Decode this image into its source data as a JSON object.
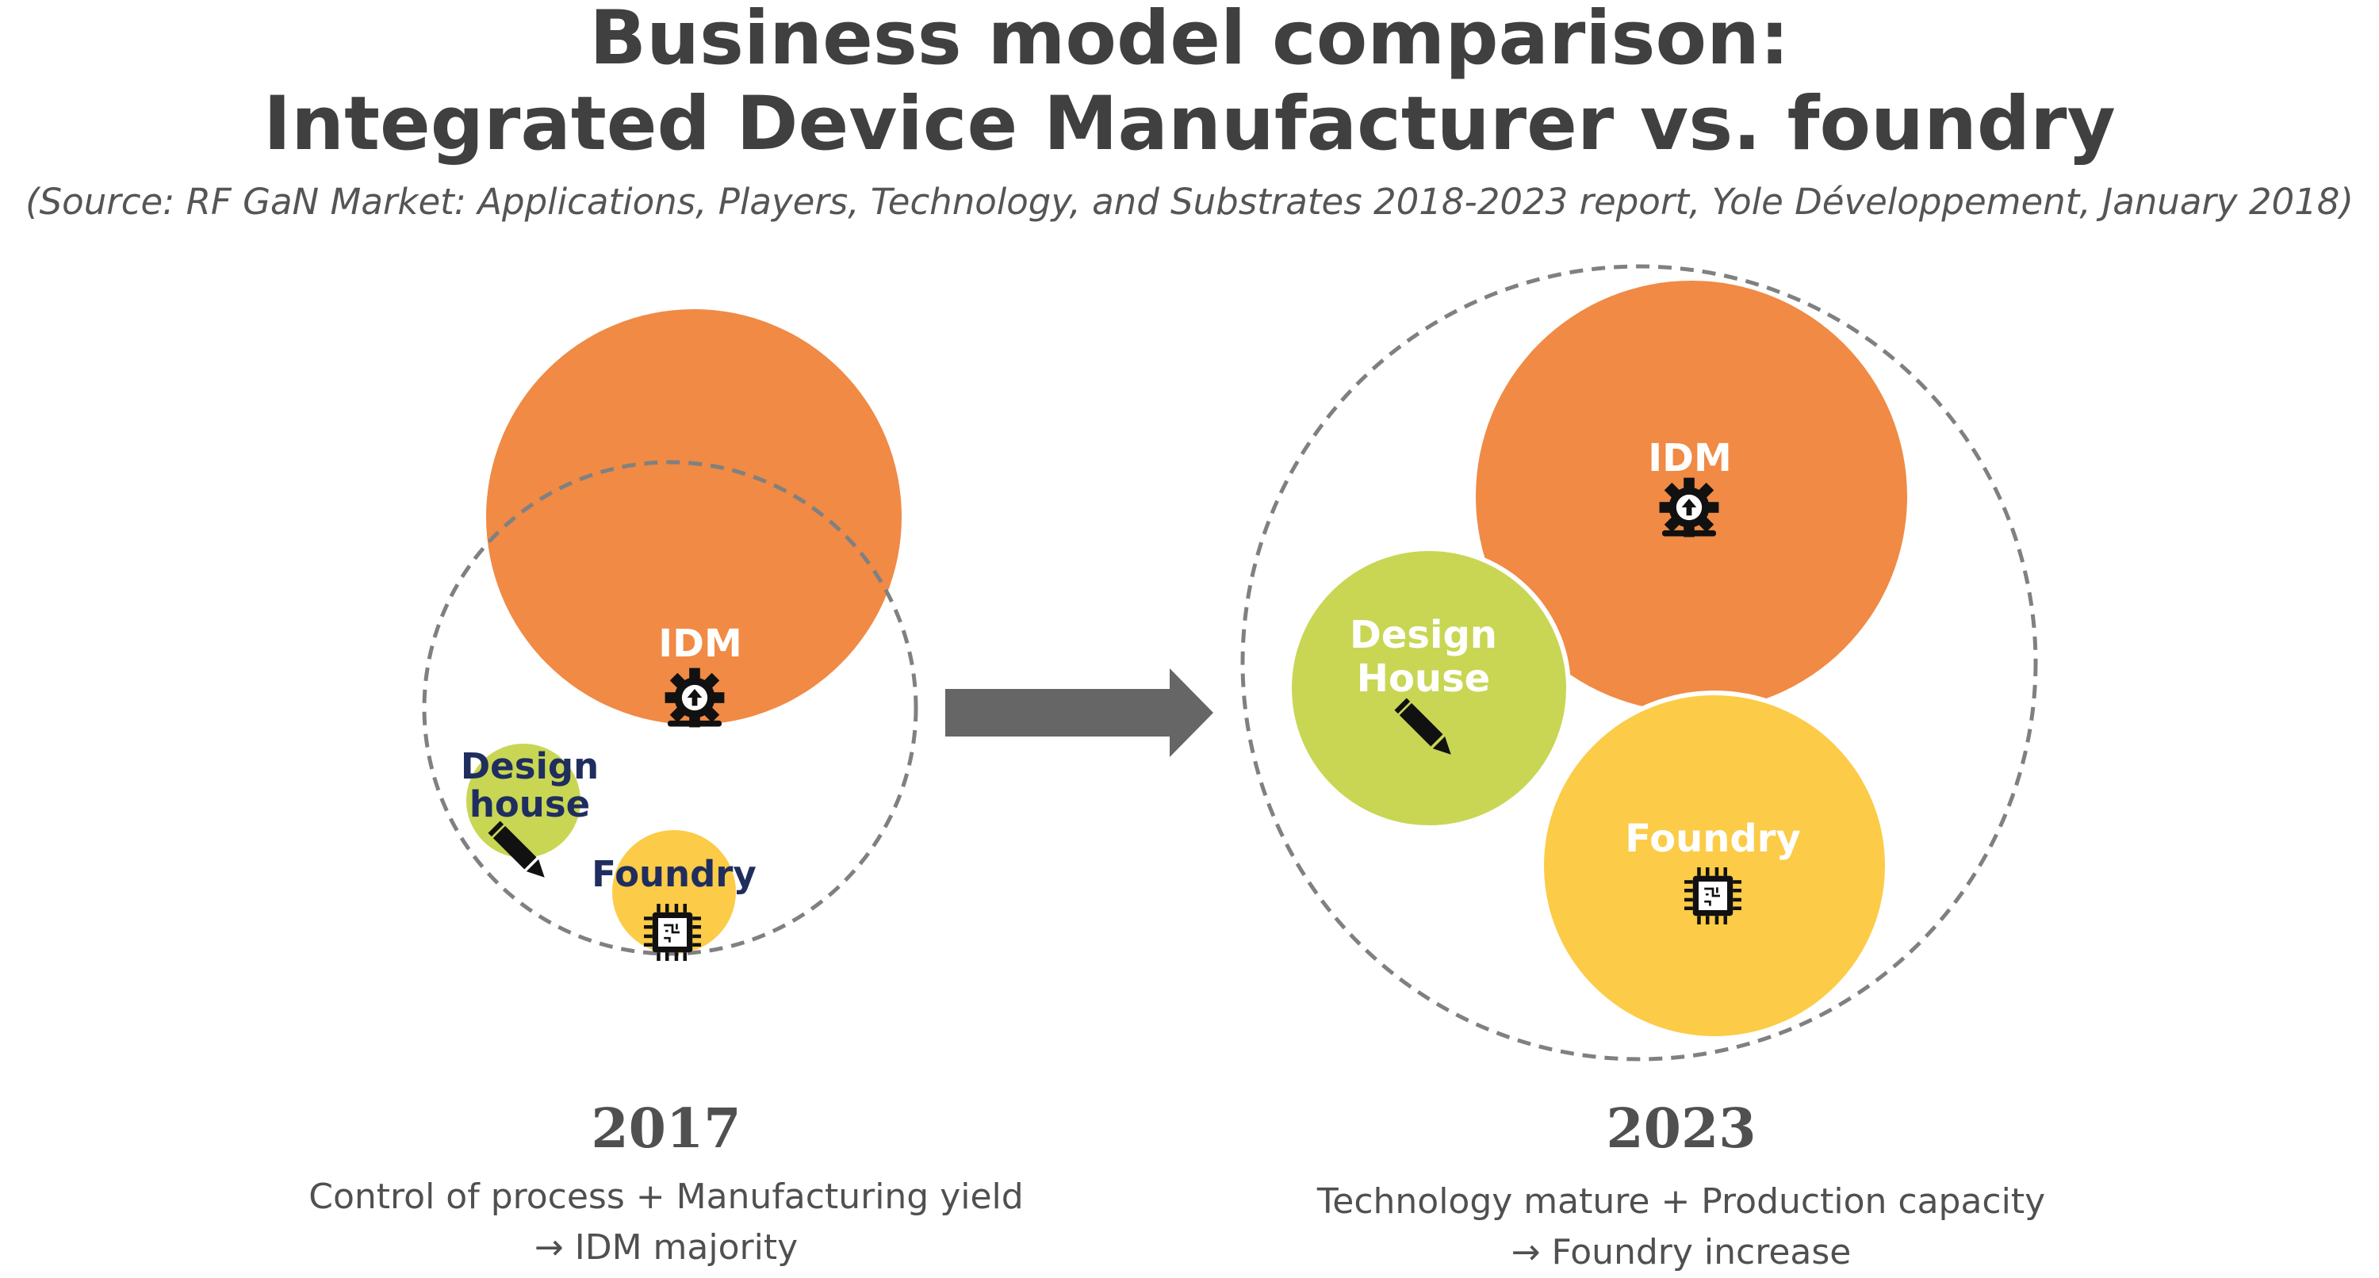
{
  "title": {
    "line1": "Business model comparison:",
    "line2": "Integrated Device Manufacturer vs. foundry"
  },
  "source": "(Source: RF GaN Market: Applications, Players, Technology, and Substrates 2018-2023 report, Yole Développement, January 2018)",
  "panel_2017": {
    "year": "2017",
    "idm_label": "IDM",
    "design_label_line1": "Design",
    "design_label_line2": "house",
    "foundry_label": "Foundry",
    "caption_line1": "Control of process + Manufacturing yield",
    "caption_line2": "→ IDM majority"
  },
  "panel_2023": {
    "year": "2023",
    "idm_label": "IDM",
    "design_label_line1": "Design",
    "design_label_line2": "House",
    "foundry_label": "Foundry",
    "caption_line1": "Technology mature + Production capacity",
    "caption_line2": "→ Foundry increase"
  },
  "icons": {
    "idm": "gear-upload-icon",
    "design": "pencil-icon",
    "foundry": "chip-icon",
    "transition": "right-arrow-icon"
  },
  "colors": {
    "idm": "#F08A45",
    "design_house": "#C8D654",
    "foundry": "#FCCB47",
    "text_dark": "#404040",
    "label_navy": "#1F2E5E",
    "arrow": "#666666"
  }
}
